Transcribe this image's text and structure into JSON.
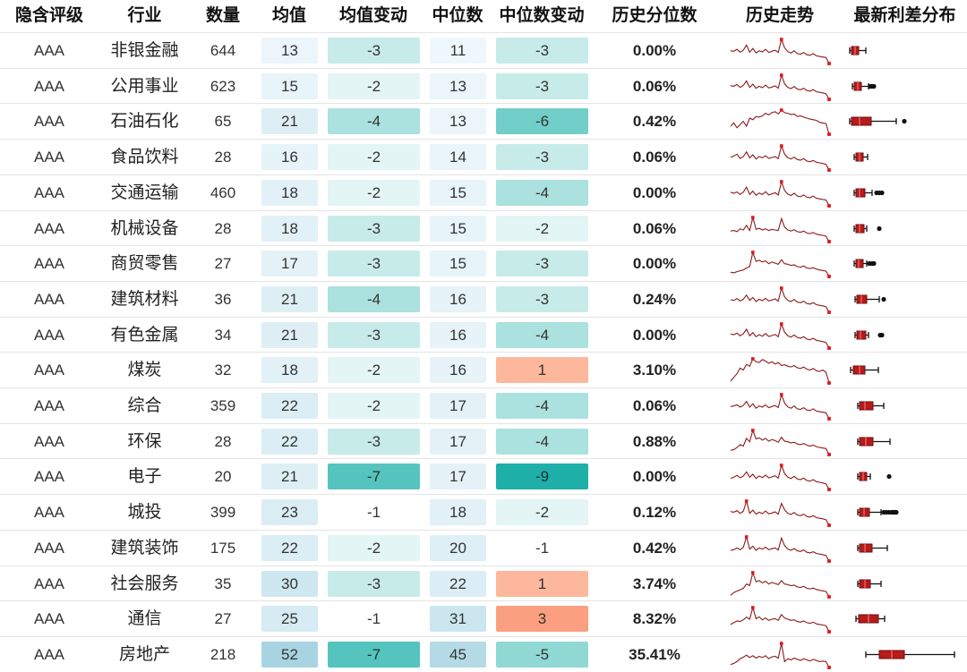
{
  "headers": [
    "隐含评级",
    "行业",
    "数量",
    "均值",
    "均值变动",
    "中位数",
    "中位数变动",
    "历史分位数",
    "历史走势",
    "最新利差分布"
  ],
  "rows": [
    {
      "rating": "AAA",
      "industry": "非银金融",
      "count": "644",
      "mean": "13",
      "mean_change": "-3",
      "median": "11",
      "median_change": "-3",
      "percentile": "0.00%"
    },
    {
      "rating": "AAA",
      "industry": "公用事业",
      "count": "623",
      "mean": "15",
      "mean_change": "-2",
      "median": "13",
      "median_change": "-3",
      "percentile": "0.06%"
    },
    {
      "rating": "AAA",
      "industry": "石油石化",
      "count": "65",
      "mean": "21",
      "mean_change": "-4",
      "median": "13",
      "median_change": "-6",
      "percentile": "0.42%"
    },
    {
      "rating": "AAA",
      "industry": "食品饮料",
      "count": "28",
      "mean": "16",
      "mean_change": "-2",
      "median": "14",
      "median_change": "-3",
      "percentile": "0.06%"
    },
    {
      "rating": "AAA",
      "industry": "交通运输",
      "count": "460",
      "mean": "18",
      "mean_change": "-2",
      "median": "15",
      "median_change": "-4",
      "percentile": "0.00%"
    },
    {
      "rating": "AAA",
      "industry": "机械设备",
      "count": "28",
      "mean": "18",
      "mean_change": "-3",
      "median": "15",
      "median_change": "-2",
      "percentile": "0.06%"
    },
    {
      "rating": "AAA",
      "industry": "商贸零售",
      "count": "27",
      "mean": "17",
      "mean_change": "-3",
      "median": "15",
      "median_change": "-3",
      "percentile": "0.00%"
    },
    {
      "rating": "AAA",
      "industry": "建筑材料",
      "count": "36",
      "mean": "21",
      "mean_change": "-4",
      "median": "16",
      "median_change": "-3",
      "percentile": "0.24%"
    },
    {
      "rating": "AAA",
      "industry": "有色金属",
      "count": "34",
      "mean": "21",
      "mean_change": "-3",
      "median": "16",
      "median_change": "-4",
      "percentile": "0.00%"
    },
    {
      "rating": "AAA",
      "industry": "煤炭",
      "count": "32",
      "mean": "18",
      "mean_change": "-2",
      "median": "16",
      "median_change": "1",
      "percentile": "3.10%"
    },
    {
      "rating": "AAA",
      "industry": "综合",
      "count": "359",
      "mean": "22",
      "mean_change": "-2",
      "median": "17",
      "median_change": "-4",
      "percentile": "0.06%"
    },
    {
      "rating": "AAA",
      "industry": "环保",
      "count": "28",
      "mean": "22",
      "mean_change": "-3",
      "median": "17",
      "median_change": "-4",
      "percentile": "0.88%"
    },
    {
      "rating": "AAA",
      "industry": "电子",
      "count": "20",
      "mean": "21",
      "mean_change": "-7",
      "median": "17",
      "median_change": "-9",
      "percentile": "0.00%"
    },
    {
      "rating": "AAA",
      "industry": "城投",
      "count": "399",
      "mean": "23",
      "mean_change": "-1",
      "median": "18",
      "median_change": "-2",
      "percentile": "0.12%"
    },
    {
      "rating": "AAA",
      "industry": "建筑装饰",
      "count": "175",
      "mean": "22",
      "mean_change": "-2",
      "median": "20",
      "median_change": "-1",
      "percentile": "0.42%"
    },
    {
      "rating": "AAA",
      "industry": "社会服务",
      "count": "35",
      "mean": "30",
      "mean_change": "-3",
      "median": "22",
      "median_change": "1",
      "percentile": "3.74%"
    },
    {
      "rating": "AAA",
      "industry": "通信",
      "count": "27",
      "mean": "25",
      "mean_change": "-1",
      "median": "31",
      "median_change": "3",
      "percentile": "8.32%"
    },
    {
      "rating": "AAA",
      "industry": "房地产",
      "count": "218",
      "mean": "52",
      "mean_change": "-7",
      "median": "45",
      "median_change": "-5",
      "percentile": "35.41%"
    }
  ],
  "chart_data": {
    "type": "table",
    "title": "",
    "columns": [
      "隐含评级",
      "行业",
      "数量",
      "均值",
      "均值变动",
      "中位数",
      "中位数变动",
      "历史分位数",
      "历史走势",
      "最新利差分布"
    ],
    "value_scale": {
      "mean_median_range": [
        0,
        60
      ],
      "change_range": [
        -9,
        3
      ]
    },
    "spread_distribution_range": [
      0,
      130
    ],
    "distributions": [
      {
        "q1": 5,
        "median": 9,
        "q3": 13,
        "whisker_low": 3,
        "whisker_high": 21,
        "outliers": []
      },
      {
        "q1": 8,
        "median": 12,
        "q3": 16,
        "whisker_low": 6,
        "whisker_high": 24,
        "outliers": [
          26,
          28,
          30
        ]
      },
      {
        "q1": 5,
        "median": 14,
        "q3": 27,
        "whisker_low": 3,
        "whisker_high": 55,
        "outliers": [
          64
        ]
      },
      {
        "q1": 10,
        "median": 14,
        "q3": 18,
        "whisker_low": 8,
        "whisker_high": 23,
        "outliers": []
      },
      {
        "q1": 10,
        "median": 14,
        "q3": 20,
        "whisker_low": 8,
        "whisker_high": 28,
        "outliers": [
          33,
          36,
          39
        ]
      },
      {
        "q1": 10,
        "median": 14,
        "q3": 19,
        "whisker_low": 8,
        "whisker_high": 22,
        "outliers": [
          36
        ]
      },
      {
        "q1": 10,
        "median": 13,
        "q3": 18,
        "whisker_low": 8,
        "whisker_high": 22,
        "outliers": [
          25,
          28,
          30
        ]
      },
      {
        "q1": 11,
        "median": 16,
        "q3": 22,
        "whisker_low": 9,
        "whisker_high": 36,
        "outliers": [
          41
        ]
      },
      {
        "q1": 11,
        "median": 15,
        "q3": 21,
        "whisker_low": 9,
        "whisker_high": 24,
        "outliers": [
          37,
          39
        ]
      },
      {
        "q1": 7,
        "median": 14,
        "q3": 20,
        "whisker_low": 4,
        "whisker_high": 35,
        "outliers": []
      },
      {
        "q1": 14,
        "median": 20,
        "q3": 29,
        "whisker_low": 12,
        "whisker_high": 41,
        "outliers": []
      },
      {
        "q1": 14,
        "median": 21,
        "q3": 29,
        "whisker_low": 12,
        "whisker_high": 48,
        "outliers": []
      },
      {
        "q1": 14,
        "median": 18,
        "q3": 22,
        "whisker_low": 12,
        "whisker_high": 26,
        "outliers": [
          47
        ]
      },
      {
        "q1": 14,
        "median": 19,
        "q3": 25,
        "whisker_low": 12,
        "whisker_high": 38,
        "outliers": [
          41,
          44,
          47,
          50,
          52,
          54,
          55
        ]
      },
      {
        "q1": 14,
        "median": 20,
        "q3": 28,
        "whisker_low": 12,
        "whisker_high": 45,
        "outliers": []
      },
      {
        "q1": 14,
        "median": 20,
        "q3": 26,
        "whisker_low": 12,
        "whisker_high": 38,
        "outliers": []
      },
      {
        "q1": 13,
        "median": 24,
        "q3": 35,
        "whisker_low": 10,
        "whisker_high": 42,
        "outliers": []
      },
      {
        "q1": 36,
        "median": 50,
        "q3": 64,
        "whisker_low": 21,
        "whisker_high": 120,
        "outliers": []
      }
    ],
    "trend_series": [
      [
        50,
        48,
        55,
        45,
        52,
        70,
        45,
        58,
        42,
        50,
        46,
        55,
        44,
        48,
        52,
        44,
        90,
        60,
        47,
        42,
        50,
        40,
        38,
        44,
        36,
        34,
        40,
        32,
        30,
        28,
        26,
        5
      ],
      [
        52,
        50,
        56,
        46,
        53,
        68,
        46,
        57,
        43,
        50,
        45,
        54,
        44,
        47,
        51,
        43,
        88,
        58,
        46,
        42,
        49,
        40,
        38,
        43,
        35,
        33,
        38,
        31,
        29,
        27,
        24,
        5
      ],
      [
        30,
        40,
        25,
        35,
        45,
        30,
        55,
        50,
        60,
        58,
        62,
        70,
        65,
        72,
        75,
        68,
        80,
        72,
        70,
        66,
        68,
        60,
        62,
        58,
        55,
        52,
        50,
        48,
        42,
        40,
        38,
        5
      ],
      [
        48,
        52,
        58,
        44,
        50,
        66,
        46,
        56,
        42,
        50,
        46,
        53,
        44,
        47,
        50,
        43,
        86,
        58,
        46,
        42,
        48,
        40,
        38,
        43,
        35,
        33,
        37,
        31,
        29,
        27,
        24,
        5
      ],
      [
        54,
        50,
        55,
        46,
        54,
        72,
        46,
        58,
        43,
        51,
        46,
        56,
        44,
        48,
        52,
        44,
        92,
        60,
        47,
        42,
        50,
        40,
        38,
        44,
        36,
        34,
        40,
        32,
        30,
        28,
        26,
        5
      ],
      [
        42,
        44,
        40,
        50,
        46,
        62,
        44,
        90,
        48,
        52,
        46,
        50,
        44,
        48,
        46,
        44,
        86,
        56,
        46,
        42,
        47,
        40,
        38,
        42,
        35,
        33,
        37,
        31,
        29,
        27,
        24,
        5
      ],
      [
        20,
        18,
        22,
        25,
        28,
        35,
        40,
        90,
        58,
        62,
        56,
        60,
        50,
        56,
        52,
        48,
        64,
        50,
        48,
        44,
        46,
        40,
        38,
        42,
        35,
        33,
        36,
        31,
        28,
        26,
        24,
        5
      ],
      [
        48,
        46,
        52,
        44,
        50,
        64,
        46,
        56,
        42,
        50,
        45,
        53,
        44,
        47,
        51,
        43,
        88,
        58,
        46,
        42,
        49,
        40,
        38,
        43,
        35,
        33,
        38,
        31,
        29,
        27,
        24,
        5
      ],
      [
        52,
        50,
        55,
        46,
        53,
        68,
        46,
        57,
        43,
        50,
        45,
        54,
        44,
        47,
        51,
        43,
        86,
        58,
        46,
        42,
        49,
        40,
        38,
        43,
        35,
        33,
        38,
        31,
        29,
        27,
        24,
        5
      ],
      [
        10,
        20,
        30,
        45,
        40,
        55,
        50,
        70,
        62,
        60,
        68,
        64,
        58,
        62,
        56,
        60,
        52,
        54,
        50,
        48,
        52,
        46,
        44,
        48,
        42,
        40,
        44,
        38,
        36,
        40,
        34,
        5
      ],
      [
        48,
        50,
        54,
        46,
        52,
        66,
        46,
        58,
        42,
        50,
        46,
        54,
        44,
        48,
        52,
        44,
        90,
        60,
        47,
        42,
        50,
        40,
        38,
        44,
        36,
        34,
        40,
        32,
        30,
        28,
        26,
        5
      ],
      [
        20,
        22,
        30,
        40,
        35,
        62,
        50,
        90,
        60,
        64,
        56,
        62,
        52,
        58,
        54,
        48,
        66,
        52,
        50,
        46,
        48,
        42,
        40,
        44,
        38,
        35,
        38,
        33,
        30,
        28,
        26,
        5
      ],
      [
        42,
        46,
        52,
        44,
        50,
        64,
        46,
        56,
        42,
        50,
        45,
        53,
        44,
        47,
        51,
        43,
        86,
        58,
        46,
        42,
        49,
        40,
        38,
        43,
        35,
        33,
        38,
        31,
        29,
        27,
        24,
        5
      ],
      [
        52,
        50,
        55,
        46,
        53,
        88,
        46,
        57,
        43,
        50,
        45,
        54,
        44,
        47,
        51,
        43,
        80,
        58,
        46,
        42,
        49,
        40,
        38,
        43,
        35,
        33,
        38,
        31,
        29,
        27,
        24,
        5
      ],
      [
        42,
        44,
        50,
        44,
        52,
        88,
        46,
        56,
        42,
        50,
        46,
        53,
        44,
        47,
        50,
        43,
        84,
        58,
        46,
        42,
        48,
        40,
        38,
        43,
        35,
        33,
        37,
        31,
        29,
        27,
        24,
        5
      ],
      [
        10,
        20,
        25,
        30,
        35,
        50,
        45,
        90,
        58,
        62,
        54,
        60,
        50,
        56,
        52,
        48,
        62,
        50,
        48,
        44,
        46,
        40,
        38,
        42,
        35,
        33,
        36,
        31,
        28,
        26,
        24,
        5
      ],
      [
        30,
        36,
        42,
        40,
        46,
        55,
        48,
        88,
        50,
        56,
        46,
        52,
        44,
        48,
        50,
        44,
        64,
        52,
        48,
        44,
        46,
        40,
        38,
        42,
        36,
        34,
        38,
        32,
        30,
        28,
        26,
        5
      ],
      [
        20,
        24,
        30,
        40,
        45,
        52,
        44,
        50,
        42,
        48,
        44,
        50,
        40,
        46,
        48,
        42,
        92,
        30,
        40,
        36,
        42,
        38,
        34,
        40,
        36,
        32,
        38,
        34,
        30,
        32,
        30,
        10
      ]
    ]
  }
}
